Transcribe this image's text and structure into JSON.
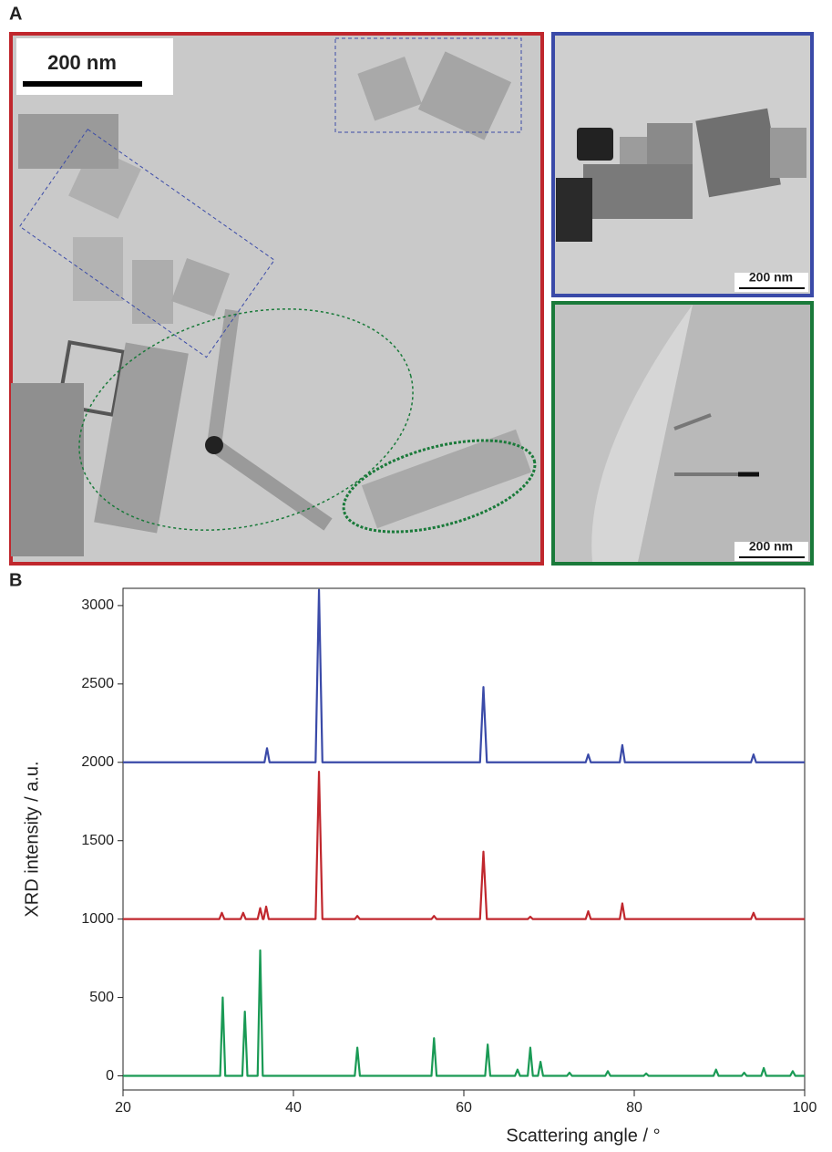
{
  "panel_a": {
    "label": "A",
    "scale_bar_labels": [
      "200 nm",
      "200 nm",
      "200 nm"
    ]
  },
  "chart_data": {
    "type": "line",
    "panel_label": "B",
    "xlabel": "Scattering angle / °",
    "ylabel": "XRD intensity / a.u.",
    "xlim": [
      20,
      100
    ],
    "xticks": [
      20,
      40,
      60,
      80,
      100
    ],
    "ylim": [
      -90,
      3110
    ],
    "yticks": [
      0,
      500,
      1000,
      1500,
      2000,
      2500,
      3000
    ],
    "series": [
      {
        "color": "#3a4aa8",
        "x": [
          20,
          36.6,
          36.9,
          37.2,
          42.6,
          43,
          43.4,
          61.9,
          62.3,
          62.7,
          74.3,
          74.6,
          74.9,
          78.3,
          78.6,
          78.9,
          93.7,
          94,
          94.3,
          100
        ],
        "values": [
          2000,
          2000,
          2090,
          2000,
          2000,
          3100,
          2000,
          2000,
          2480,
          2000,
          2000,
          2050,
          2000,
          2000,
          2110,
          2000,
          2000,
          2050,
          2000,
          2000
        ]
      },
      {
        "color": "#c0272d",
        "x": [
          20,
          31.3,
          31.6,
          31.9,
          33.8,
          34.1,
          34.4,
          35.8,
          36.1,
          36.4,
          36.5,
          36.8,
          37.1,
          42.6,
          43,
          43.4,
          47.2,
          47.5,
          47.8,
          56.2,
          56.5,
          56.8,
          61.9,
          62.3,
          62.7,
          67.5,
          67.8,
          68.1,
          74.3,
          74.6,
          74.9,
          78.3,
          78.6,
          78.9,
          93.7,
          94,
          94.3,
          100
        ],
        "values": [
          1000,
          1000,
          1040,
          1000,
          1000,
          1040,
          1000,
          1000,
          1070,
          1000,
          1000,
          1080,
          1000,
          1000,
          1940,
          1000,
          1000,
          1020,
          1000,
          1000,
          1020,
          1000,
          1000,
          1430,
          1000,
          1000,
          1015,
          1000,
          1000,
          1050,
          1000,
          1000,
          1100,
          1000,
          1000,
          1040,
          1000,
          1000
        ]
      },
      {
        "color": "#1a9a55",
        "x": [
          20,
          31.4,
          31.7,
          32.0,
          34.0,
          34.3,
          34.6,
          35.8,
          36.1,
          36.4,
          47.2,
          47.5,
          47.8,
          56.2,
          56.5,
          56.8,
          62.5,
          62.8,
          63.1,
          66.0,
          66.3,
          66.6,
          67.5,
          67.8,
          68.1,
          68.7,
          69.0,
          69.3,
          72.1,
          72.4,
          72.7,
          76.6,
          76.9,
          77.2,
          81.1,
          81.4,
          81.7,
          89.3,
          89.6,
          89.9,
          92.6,
          92.9,
          93.2,
          94.9,
          95.2,
          95.5,
          98.3,
          98.6,
          98.9,
          100
        ],
        "values": [
          0,
          0,
          500,
          0,
          0,
          410,
          0,
          0,
          800,
          0,
          0,
          180,
          0,
          0,
          240,
          0,
          0,
          200,
          0,
          0,
          40,
          0,
          0,
          180,
          0,
          0,
          90,
          0,
          0,
          20,
          0,
          0,
          30,
          0,
          0,
          15,
          0,
          0,
          40,
          0,
          0,
          20,
          0,
          0,
          50,
          0,
          0,
          30,
          0,
          0
        ]
      }
    ]
  }
}
